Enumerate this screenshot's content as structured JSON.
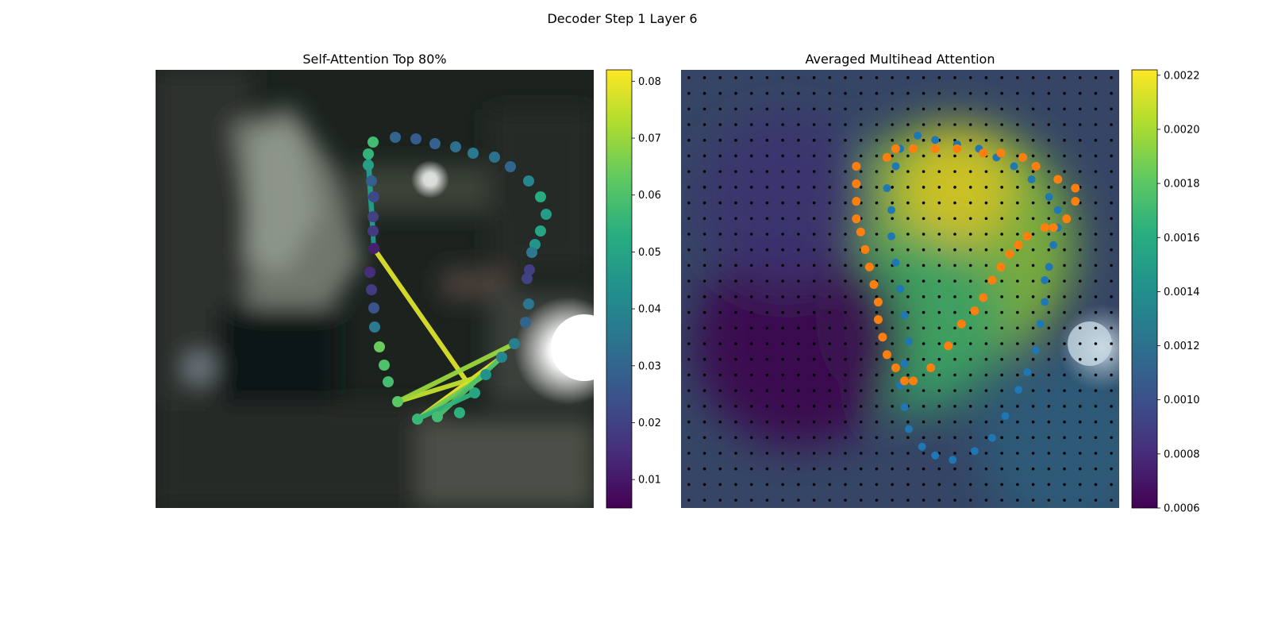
{
  "figure": {
    "suptitle": "Decoder Step 1 Layer 6"
  },
  "chart_data": [
    {
      "type": "scatter",
      "title": "Self-Attention Top 80%",
      "background": "blurred photograph (dark, with bright light source at right)",
      "axes": "off",
      "colormap": "viridis",
      "colorbar": {
        "min": 0.005,
        "max": 0.082,
        "ticks": [
          0.01,
          0.02,
          0.03,
          0.04,
          0.05,
          0.06,
          0.07,
          0.08
        ],
        "tick_labels": [
          "0.01",
          "0.02",
          "0.03",
          "0.04",
          "0.05",
          "0.06",
          "0.07",
          "0.08"
        ]
      },
      "points": [
        {
          "x": 302,
          "y": 85,
          "v": 0.03
        },
        {
          "x": 328,
          "y": 87,
          "v": 0.027
        },
        {
          "x": 352,
          "y": 93,
          "v": 0.029
        },
        {
          "x": 378,
          "y": 97,
          "v": 0.033
        },
        {
          "x": 400,
          "y": 105,
          "v": 0.036
        },
        {
          "x": 427,
          "y": 110,
          "v": 0.034
        },
        {
          "x": 447,
          "y": 122,
          "v": 0.03
        },
        {
          "x": 470,
          "y": 140,
          "v": 0.04
        },
        {
          "x": 485,
          "y": 160,
          "v": 0.052
        },
        {
          "x": 492,
          "y": 182,
          "v": 0.047
        },
        {
          "x": 485,
          "y": 203,
          "v": 0.05
        },
        {
          "x": 478,
          "y": 220,
          "v": 0.045
        },
        {
          "x": 474,
          "y": 230,
          "v": 0.036
        },
        {
          "x": 471,
          "y": 252,
          "v": 0.019
        },
        {
          "x": 468,
          "y": 263,
          "v": 0.02
        },
        {
          "x": 470,
          "y": 295,
          "v": 0.035
        },
        {
          "x": 466,
          "y": 318,
          "v": 0.03
        },
        {
          "x": 452,
          "y": 345,
          "v": 0.038
        },
        {
          "x": 436,
          "y": 362,
          "v": 0.04
        },
        {
          "x": 416,
          "y": 384,
          "v": 0.044
        },
        {
          "x": 402,
          "y": 407,
          "v": 0.05
        },
        {
          "x": 383,
          "y": 432,
          "v": 0.054
        },
        {
          "x": 355,
          "y": 437,
          "v": 0.058
        },
        {
          "x": 330,
          "y": 440,
          "v": 0.056
        },
        {
          "x": 305,
          "y": 418,
          "v": 0.062
        },
        {
          "x": 293,
          "y": 393,
          "v": 0.058
        },
        {
          "x": 288,
          "y": 372,
          "v": 0.06
        },
        {
          "x": 282,
          "y": 349,
          "v": 0.064
        },
        {
          "x": 276,
          "y": 324,
          "v": 0.036
        },
        {
          "x": 275,
          "y": 300,
          "v": 0.025
        },
        {
          "x": 272,
          "y": 277,
          "v": 0.018
        },
        {
          "x": 270,
          "y": 255,
          "v": 0.015
        },
        {
          "x": 275,
          "y": 225,
          "v": 0.012
        },
        {
          "x": 274,
          "y": 203,
          "v": 0.018
        },
        {
          "x": 274,
          "y": 185,
          "v": 0.02
        },
        {
          "x": 275,
          "y": 160,
          "v": 0.022
        },
        {
          "x": 272,
          "y": 140,
          "v": 0.028
        },
        {
          "x": 268,
          "y": 120,
          "v": 0.048
        },
        {
          "x": 268,
          "y": 106,
          "v": 0.055
        },
        {
          "x": 274,
          "y": 91,
          "v": 0.058
        }
      ],
      "attention_lines": [
        {
          "from": 20,
          "to": 32,
          "v": 0.078
        },
        {
          "from": 18,
          "to": 23,
          "v": 0.08
        },
        {
          "from": 19,
          "to": 24,
          "v": 0.075
        },
        {
          "from": 17,
          "to": 24,
          "v": 0.07
        },
        {
          "from": 19,
          "to": 23,
          "v": 0.065
        },
        {
          "from": 18,
          "to": 22,
          "v": 0.06
        },
        {
          "from": 20,
          "to": 23,
          "v": 0.055
        },
        {
          "from": 38,
          "to": 33,
          "v": 0.048
        },
        {
          "from": 37,
          "to": 32,
          "v": 0.046
        }
      ]
    },
    {
      "type": "heatmap",
      "title": "Averaged Multihead Attention",
      "background": "blurred photograph overlaid with a viridis attention heatmap on a grid of black dots",
      "axes": "off",
      "colormap": "viridis",
      "grid_size": 28,
      "colorbar": {
        "min": 0.0006,
        "max": 0.00222,
        "ticks": [
          0.0006,
          0.0008,
          0.001,
          0.0012,
          0.0014,
          0.0016,
          0.0018,
          0.002,
          0.0022
        ],
        "tick_labels": [
          "0.0006",
          "0.0008",
          "0.0010",
          "0.0012",
          "0.0014",
          "0.0016",
          "0.0018",
          "0.0020",
          "0.0022"
        ]
      },
      "heat_blobs": [
        {
          "cx": 0.62,
          "cy": 0.4,
          "r": 0.28,
          "v": 0.00195
        },
        {
          "cx": 0.63,
          "cy": 0.27,
          "r": 0.13,
          "v": 0.00222
        },
        {
          "cx": 0.54,
          "cy": 0.58,
          "r": 0.2,
          "v": 0.0017
        },
        {
          "cx": 0.27,
          "cy": 0.62,
          "r": 0.24,
          "v": 0.00062
        },
        {
          "cx": 0.24,
          "cy": 0.3,
          "r": 0.2,
          "v": 0.00085
        },
        {
          "cx": 0.88,
          "cy": 0.85,
          "r": 0.2,
          "v": 0.00115
        }
      ],
      "blue_points": [
        {
          "x": 0.54,
          "y": 0.15
        },
        {
          "x": 0.58,
          "y": 0.16
        },
        {
          "x": 0.63,
          "y": 0.17
        },
        {
          "x": 0.68,
          "y": 0.18
        },
        {
          "x": 0.72,
          "y": 0.2
        },
        {
          "x": 0.76,
          "y": 0.22
        },
        {
          "x": 0.8,
          "y": 0.25
        },
        {
          "x": 0.84,
          "y": 0.29
        },
        {
          "x": 0.86,
          "y": 0.32
        },
        {
          "x": 0.86,
          "y": 0.36
        },
        {
          "x": 0.85,
          "y": 0.4
        },
        {
          "x": 0.84,
          "y": 0.45
        },
        {
          "x": 0.83,
          "y": 0.48
        },
        {
          "x": 0.83,
          "y": 0.53
        },
        {
          "x": 0.82,
          "y": 0.58
        },
        {
          "x": 0.81,
          "y": 0.64
        },
        {
          "x": 0.79,
          "y": 0.69
        },
        {
          "x": 0.77,
          "y": 0.73
        },
        {
          "x": 0.74,
          "y": 0.79
        },
        {
          "x": 0.71,
          "y": 0.84
        },
        {
          "x": 0.67,
          "y": 0.87
        },
        {
          "x": 0.62,
          "y": 0.89
        },
        {
          "x": 0.58,
          "y": 0.88
        },
        {
          "x": 0.55,
          "y": 0.86
        },
        {
          "x": 0.52,
          "y": 0.82
        },
        {
          "x": 0.51,
          "y": 0.77
        },
        {
          "x": 0.5,
          "y": 0.72
        },
        {
          "x": 0.51,
          "y": 0.67
        },
        {
          "x": 0.52,
          "y": 0.62
        },
        {
          "x": 0.51,
          "y": 0.56
        },
        {
          "x": 0.5,
          "y": 0.5
        },
        {
          "x": 0.49,
          "y": 0.44
        },
        {
          "x": 0.48,
          "y": 0.38
        },
        {
          "x": 0.48,
          "y": 0.32
        },
        {
          "x": 0.47,
          "y": 0.27
        },
        {
          "x": 0.49,
          "y": 0.22
        },
        {
          "x": 0.5,
          "y": 0.18
        }
      ],
      "orange_points": [
        {
          "x": 0.47,
          "y": 0.2
        },
        {
          "x": 0.49,
          "y": 0.18
        },
        {
          "x": 0.53,
          "y": 0.18
        },
        {
          "x": 0.58,
          "y": 0.18
        },
        {
          "x": 0.63,
          "y": 0.18
        },
        {
          "x": 0.69,
          "y": 0.19
        },
        {
          "x": 0.73,
          "y": 0.19
        },
        {
          "x": 0.78,
          "y": 0.2
        },
        {
          "x": 0.81,
          "y": 0.22
        },
        {
          "x": 0.86,
          "y": 0.25
        },
        {
          "x": 0.9,
          "y": 0.27
        },
        {
          "x": 0.9,
          "y": 0.3
        },
        {
          "x": 0.88,
          "y": 0.34
        },
        {
          "x": 0.85,
          "y": 0.36
        },
        {
          "x": 0.83,
          "y": 0.36
        },
        {
          "x": 0.79,
          "y": 0.38
        },
        {
          "x": 0.77,
          "y": 0.4
        },
        {
          "x": 0.75,
          "y": 0.42
        },
        {
          "x": 0.73,
          "y": 0.45
        },
        {
          "x": 0.71,
          "y": 0.48
        },
        {
          "x": 0.69,
          "y": 0.52
        },
        {
          "x": 0.67,
          "y": 0.55
        },
        {
          "x": 0.64,
          "y": 0.58
        },
        {
          "x": 0.61,
          "y": 0.63
        },
        {
          "x": 0.57,
          "y": 0.68
        },
        {
          "x": 0.53,
          "y": 0.71
        },
        {
          "x": 0.51,
          "y": 0.71
        },
        {
          "x": 0.49,
          "y": 0.68
        },
        {
          "x": 0.47,
          "y": 0.65
        },
        {
          "x": 0.46,
          "y": 0.61
        },
        {
          "x": 0.45,
          "y": 0.57
        },
        {
          "x": 0.45,
          "y": 0.53
        },
        {
          "x": 0.44,
          "y": 0.49
        },
        {
          "x": 0.43,
          "y": 0.45
        },
        {
          "x": 0.42,
          "y": 0.41
        },
        {
          "x": 0.41,
          "y": 0.37
        },
        {
          "x": 0.4,
          "y": 0.34
        },
        {
          "x": 0.4,
          "y": 0.3
        },
        {
          "x": 0.4,
          "y": 0.26
        },
        {
          "x": 0.4,
          "y": 0.22
        }
      ],
      "blue_color": "#1f77b4",
      "orange_color": "#ff7f0e"
    }
  ]
}
